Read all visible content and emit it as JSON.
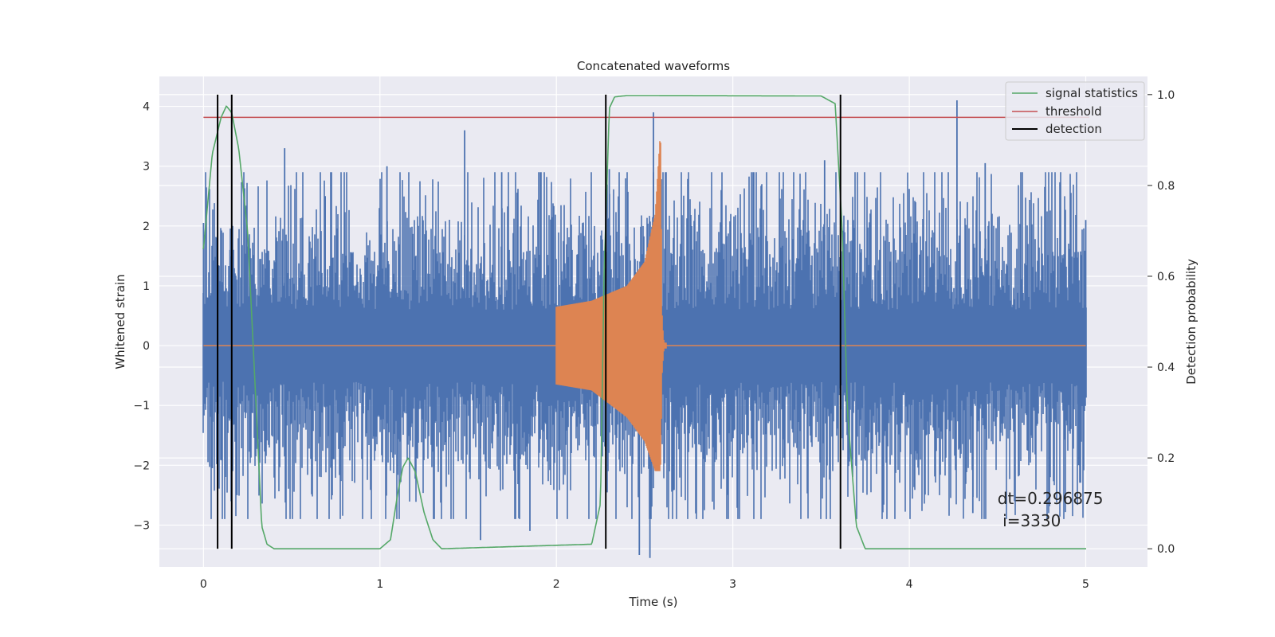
{
  "chart_data": {
    "type": "line",
    "title": "Concatenated waveforms",
    "xlabel": "Time (s)",
    "ylabel_left": "Whitened strain",
    "ylabel_right": "Detection probability",
    "xlim": [
      -0.25,
      5.35
    ],
    "ylim_left": [
      -3.7,
      4.5
    ],
    "ylim_right": [
      -0.04,
      1.04
    ],
    "grid": true,
    "legend_position": "top-right",
    "x_ticks": [
      0,
      1,
      2,
      3,
      4,
      5
    ],
    "x_tick_labels": [
      "0",
      "1",
      "2",
      "3",
      "4",
      "5"
    ],
    "y_left_ticks": [
      -3,
      -2,
      -1,
      0,
      1,
      2,
      3,
      4
    ],
    "y_left_tick_labels": [
      "−3",
      "−2",
      "−1",
      "0",
      "1",
      "2",
      "3",
      "4"
    ],
    "y_right_ticks": [
      0.0,
      0.2,
      0.4,
      0.6,
      0.8,
      1.0
    ],
    "y_right_tick_labels": [
      "0.0",
      "0.2",
      "0.4",
      "0.6",
      "0.8",
      "1.0"
    ],
    "annotation": {
      "line1": "dt=0.296875",
      "line2": " i=3330",
      "x": 4.5,
      "y": -2.65
    },
    "series": [
      {
        "name": "",
        "axis": "left",
        "kind": "noise",
        "color": "#4c72b0",
        "x_range": [
          0,
          5
        ],
        "core_amplitude": 0.6,
        "spikes_max": [
          [
            0.0,
            2.05
          ],
          [
            0.15,
            1.6
          ],
          [
            0.46,
            3.3
          ],
          [
            0.69,
            2.5
          ],
          [
            1.04,
            3.0
          ],
          [
            1.48,
            3.6
          ],
          [
            1.69,
            2.9
          ],
          [
            2.3,
            2.95
          ],
          [
            2.55,
            3.9
          ],
          [
            3.52,
            3.1
          ],
          [
            4.27,
            4.1
          ],
          [
            4.43,
            3.05
          ],
          [
            5.0,
            2.1
          ]
        ],
        "spikes_min": [
          [
            0.05,
            -2.05
          ],
          [
            0.19,
            -2.5
          ],
          [
            1.57,
            -3.25
          ],
          [
            1.85,
            -3.1
          ],
          [
            2.47,
            -3.5
          ],
          [
            2.53,
            -3.55
          ],
          [
            4.36,
            -2.8
          ],
          [
            4.96,
            -2.0
          ]
        ]
      },
      {
        "name": "",
        "axis": "left",
        "kind": "chirp",
        "color": "#dd8452",
        "x": [
          0.0,
          2.0,
          2.2,
          2.4,
          2.5,
          2.56,
          2.59,
          2.6,
          2.61,
          3.0,
          5.0
        ],
        "envelope_max": [
          0.0,
          0.65,
          0.75,
          1.0,
          1.4,
          2.2,
          3.6,
          0.4,
          0.05,
          0.02,
          0.0
        ],
        "envelope_min": [
          0.0,
          -0.65,
          -0.75,
          -1.2,
          -1.6,
          -2.1,
          -2.1,
          -0.4,
          -0.05,
          -0.02,
          0.0
        ]
      },
      {
        "name": "signal statistics",
        "axis": "right",
        "color": "#55a868",
        "x": [
          0.0,
          0.05,
          0.1,
          0.13,
          0.16,
          0.2,
          0.25,
          0.3,
          0.33,
          0.36,
          0.4,
          1.0,
          1.06,
          1.1,
          1.13,
          1.16,
          1.2,
          1.25,
          1.3,
          1.35,
          2.2,
          2.25,
          2.27,
          2.3,
          2.33,
          2.4,
          3.5,
          3.58,
          3.62,
          3.65,
          3.7,
          3.75,
          5.0
        ],
        "values": [
          0.66,
          0.87,
          0.95,
          0.975,
          0.96,
          0.88,
          0.7,
          0.3,
          0.05,
          0.01,
          0.0,
          0.0,
          0.02,
          0.12,
          0.18,
          0.2,
          0.17,
          0.08,
          0.02,
          0.0,
          0.01,
          0.1,
          0.6,
          0.97,
          0.995,
          0.998,
          0.997,
          0.98,
          0.7,
          0.3,
          0.05,
          0.0,
          0.0
        ]
      },
      {
        "name": "threshold",
        "axis": "right",
        "color": "#c44e52",
        "x": [
          0,
          5.02
        ],
        "values": [
          0.95,
          0.95
        ]
      },
      {
        "name": "detection",
        "axis": "right",
        "color": "#000000",
        "kind": "vlines",
        "x": [
          0.08,
          0.16,
          2.28,
          3.61
        ],
        "range": [
          0.0,
          1.0
        ]
      }
    ]
  }
}
